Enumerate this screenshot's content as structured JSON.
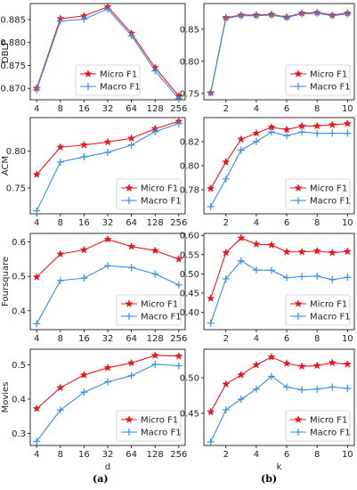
{
  "figure": {
    "caption_a": "(a)",
    "caption_b": "(b)"
  },
  "colors": {
    "micro": "#e8171f",
    "macro": "#3a8ee0",
    "axis": "#000000",
    "text": "#222222"
  },
  "chart_data": [
    {
      "type": "line",
      "dataset": "DBLP",
      "ylabel": "DBLP",
      "xlabel": "",
      "x": [
        4,
        8,
        16,
        32,
        64,
        128,
        256
      ],
      "xscale": "log2",
      "xticks": [
        "4",
        "8",
        "16",
        "32",
        "64",
        "128",
        "256"
      ],
      "ylim": [
        0.8675,
        0.8885
      ],
      "yticks": [
        0.87,
        0.875,
        0.88,
        0.885
      ],
      "ytick_labels": [
        "0.870",
        "0.875",
        "0.880",
        "0.885"
      ],
      "series": [
        {
          "name": "Micro F1",
          "values": [
            0.87,
            0.8852,
            0.8858,
            0.8878,
            0.882,
            0.8745,
            0.8683
          ]
        },
        {
          "name": "Macro F1",
          "values": [
            0.8697,
            0.8847,
            0.8851,
            0.8873,
            0.8815,
            0.8738,
            0.8677
          ]
        }
      ],
      "legend": "bottom-center"
    },
    {
      "type": "line",
      "dataset": "DBLP",
      "xlabel": "",
      "x": [
        1,
        2,
        3,
        4,
        5,
        6,
        7,
        8,
        9,
        10
      ],
      "xticks": [
        "2",
        "4",
        "6",
        "8",
        "10"
      ],
      "xtick_values": [
        2,
        4,
        6,
        8,
        10
      ],
      "ylim": [
        0.74,
        0.89
      ],
      "yticks": [
        0.75,
        0.8,
        0.85
      ],
      "ytick_labels": [
        "0.75",
        "0.80",
        "0.85"
      ],
      "series": [
        {
          "name": "Micro F1",
          "values": [
            0.751,
            0.868,
            0.872,
            0.872,
            0.873,
            0.869,
            0.875,
            0.876,
            0.872,
            0.875
          ]
        },
        {
          "name": "Macro F1",
          "values": [
            0.751,
            0.867,
            0.871,
            0.871,
            0.872,
            0.868,
            0.874,
            0.875,
            0.871,
            0.874
          ]
        }
      ],
      "legend": "bottom-right"
    },
    {
      "type": "line",
      "dataset": "ACM",
      "ylabel": "ACM",
      "xlabel": "",
      "x": [
        4,
        8,
        16,
        32,
        64,
        128,
        256
      ],
      "xscale": "log2",
      "xticks": [
        "4",
        "8",
        "16",
        "32",
        "64",
        "128",
        "256"
      ],
      "ylim": [
        0.715,
        0.845
      ],
      "yticks": [
        0.75,
        0.8
      ],
      "ytick_labels": [
        "0.75",
        "0.80"
      ],
      "series": [
        {
          "name": "Micro F1",
          "values": [
            0.768,
            0.805,
            0.808,
            0.812,
            0.817,
            0.83,
            0.84
          ]
        },
        {
          "name": "Macro F1",
          "values": [
            0.719,
            0.785,
            0.792,
            0.798,
            0.808,
            0.826,
            0.837
          ]
        }
      ],
      "legend": "bottom-right"
    },
    {
      "type": "line",
      "dataset": "ACM",
      "xlabel": "",
      "x": [
        1,
        2,
        3,
        4,
        5,
        6,
        7,
        8,
        9,
        10
      ],
      "xticks": [
        "2",
        "4",
        "6",
        "8",
        "10"
      ],
      "xtick_values": [
        2,
        4,
        6,
        8,
        10
      ],
      "ylim": [
        0.76,
        0.84
      ],
      "yticks": [
        0.78,
        0.8,
        0.82
      ],
      "ytick_labels": [
        "0.78",
        "0.80",
        "0.82"
      ],
      "series": [
        {
          "name": "Micro F1",
          "values": [
            0.781,
            0.803,
            0.822,
            0.827,
            0.832,
            0.83,
            0.833,
            0.833,
            0.834,
            0.835
          ]
        },
        {
          "name": "Macro F1",
          "values": [
            0.766,
            0.789,
            0.813,
            0.82,
            0.828,
            0.825,
            0.828,
            0.827,
            0.827,
            0.827
          ]
        }
      ],
      "legend": "bottom-right"
    },
    {
      "type": "line",
      "dataset": "Foursquare",
      "ylabel": "Foursquare",
      "xlabel": "",
      "x": [
        4,
        8,
        16,
        32,
        64,
        128,
        256
      ],
      "xscale": "log2",
      "xticks": [
        "4",
        "8",
        "16",
        "32",
        "64",
        "128",
        "256"
      ],
      "ylim": [
        0.345,
        0.625
      ],
      "yticks": [
        0.4,
        0.5,
        0.6
      ],
      "ytick_labels": [
        "0.4",
        "0.5",
        "0.6"
      ],
      "series": [
        {
          "name": "Micro F1",
          "values": [
            0.498,
            0.565,
            0.577,
            0.608,
            0.587,
            0.575,
            0.55
          ]
        },
        {
          "name": "Macro F1",
          "values": [
            0.362,
            0.488,
            0.495,
            0.531,
            0.526,
            0.507,
            0.475
          ]
        }
      ],
      "legend": "bottom-right"
    },
    {
      "type": "line",
      "dataset": "Foursquare",
      "xlabel": "",
      "x": [
        1,
        2,
        3,
        4,
        5,
        6,
        7,
        8,
        9,
        10
      ],
      "xticks": [
        "2",
        "4",
        "6",
        "8",
        "10"
      ],
      "xtick_values": [
        2,
        4,
        6,
        8,
        10
      ],
      "ylim": [
        0.355,
        0.605
      ],
      "yticks": [
        0.4,
        0.45,
        0.5,
        0.55,
        0.6
      ],
      "ytick_labels": [
        "0.40",
        "0.45",
        "0.50",
        "0.55",
        "0.60"
      ],
      "series": [
        {
          "name": "Micro F1",
          "values": [
            0.436,
            0.555,
            0.593,
            0.577,
            0.575,
            0.557,
            0.557,
            0.559,
            0.555,
            0.558
          ]
        },
        {
          "name": "Macro F1",
          "values": [
            0.372,
            0.487,
            0.534,
            0.51,
            0.509,
            0.49,
            0.493,
            0.494,
            0.485,
            0.491
          ]
        }
      ],
      "legend": "bottom-right"
    },
    {
      "type": "line",
      "dataset": "Movies",
      "ylabel": "Movies",
      "xlabel": "d",
      "x": [
        4,
        8,
        16,
        32,
        64,
        128,
        256
      ],
      "xscale": "log2",
      "xticks": [
        "4",
        "8",
        "16",
        "32",
        "64",
        "128",
        "256"
      ],
      "ylim": [
        0.265,
        0.545
      ],
      "yticks": [
        0.3,
        0.4,
        0.5
      ],
      "ytick_labels": [
        "0.3",
        "0.4",
        "0.5"
      ],
      "series": [
        {
          "name": "Micro F1",
          "values": [
            0.372,
            0.433,
            0.47,
            0.491,
            0.505,
            0.527,
            0.525
          ]
        },
        {
          "name": "Macro F1",
          "values": [
            0.277,
            0.368,
            0.42,
            0.45,
            0.468,
            0.501,
            0.497
          ]
        }
      ],
      "legend": "bottom-right"
    },
    {
      "type": "line",
      "dataset": "Movies",
      "xlabel": "k",
      "x": [
        1,
        2,
        3,
        4,
        5,
        6,
        7,
        8,
        9,
        10
      ],
      "xticks": [
        "2",
        "4",
        "6",
        "8",
        "10"
      ],
      "xtick_values": [
        2,
        4,
        6,
        8,
        10
      ],
      "ylim": [
        0.405,
        0.54
      ],
      "yticks": [
        0.45,
        0.5
      ],
      "ytick_labels": [
        "0.45",
        "0.50"
      ],
      "series": [
        {
          "name": "Micro F1",
          "values": [
            0.452,
            0.491,
            0.504,
            0.518,
            0.529,
            0.52,
            0.516,
            0.517,
            0.521,
            0.519
          ]
        },
        {
          "name": "Macro F1",
          "values": [
            0.41,
            0.455,
            0.47,
            0.484,
            0.502,
            0.487,
            0.483,
            0.484,
            0.487,
            0.485
          ]
        }
      ],
      "legend": "bottom-right"
    }
  ]
}
